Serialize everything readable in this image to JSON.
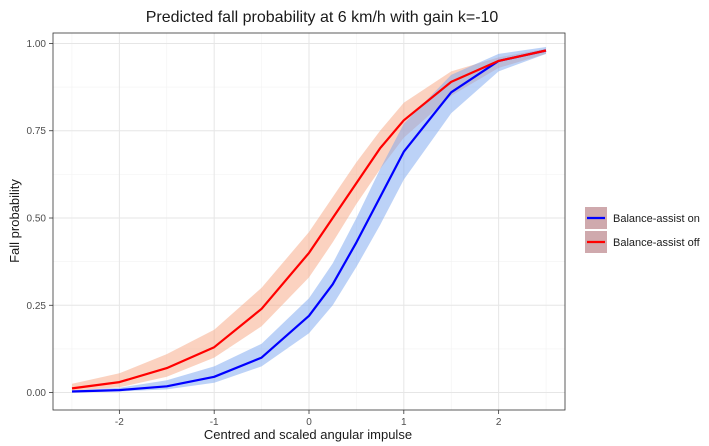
{
  "chart_data": {
    "type": "line",
    "title": "Predicted fall probability at 6 km/h with gain k=-10",
    "xlabel": "Centred and scaled angular impulse",
    "ylabel": "Fall probability",
    "xlim": [
      -2.7,
      2.7
    ],
    "ylim": [
      -0.05,
      1.03
    ],
    "x_ticks": [
      -2,
      -1,
      0,
      1,
      2
    ],
    "x_tick_labels": [
      "-2",
      "-1",
      "0",
      "1",
      "2"
    ],
    "y_ticks": [
      0,
      0.25,
      0.5,
      0.75,
      1.0
    ],
    "y_tick_labels": [
      "0.00",
      "0.25",
      "0.50",
      "0.75",
      "1.00"
    ],
    "grid": true,
    "legend_position": "right",
    "series": [
      {
        "name": "Balance-assist on",
        "color": "#0000ff",
        "band_color": "#7aa6f0",
        "x": [
          -2.5,
          -2.0,
          -1.5,
          -1.0,
          -0.5,
          0.0,
          0.25,
          0.5,
          0.75,
          1.0,
          1.5,
          2.0,
          2.5
        ],
        "y": [
          0.003,
          0.007,
          0.018,
          0.045,
          0.1,
          0.22,
          0.31,
          0.43,
          0.56,
          0.69,
          0.86,
          0.95,
          0.98
        ],
        "lower": [
          0.001,
          0.003,
          0.009,
          0.028,
          0.075,
          0.17,
          0.25,
          0.36,
          0.48,
          0.61,
          0.8,
          0.92,
          0.97
        ],
        "upper": [
          0.006,
          0.014,
          0.035,
          0.075,
          0.14,
          0.27,
          0.37,
          0.5,
          0.64,
          0.77,
          0.91,
          0.97,
          0.99
        ]
      },
      {
        "name": "Balance-assist off",
        "color": "#ff0000",
        "band_color": "#f7a582",
        "x": [
          -2.5,
          -2.0,
          -1.5,
          -1.0,
          -0.5,
          0.0,
          0.25,
          0.5,
          0.75,
          1.0,
          1.5,
          2.0,
          2.5
        ],
        "y": [
          0.012,
          0.03,
          0.07,
          0.13,
          0.24,
          0.4,
          0.5,
          0.6,
          0.7,
          0.78,
          0.89,
          0.95,
          0.98
        ],
        "lower": [
          0.005,
          0.015,
          0.045,
          0.1,
          0.19,
          0.33,
          0.43,
          0.54,
          0.64,
          0.73,
          0.85,
          0.93,
          0.97
        ],
        "upper": [
          0.025,
          0.055,
          0.11,
          0.18,
          0.3,
          0.46,
          0.56,
          0.66,
          0.75,
          0.83,
          0.92,
          0.96,
          0.985
        ]
      }
    ]
  }
}
